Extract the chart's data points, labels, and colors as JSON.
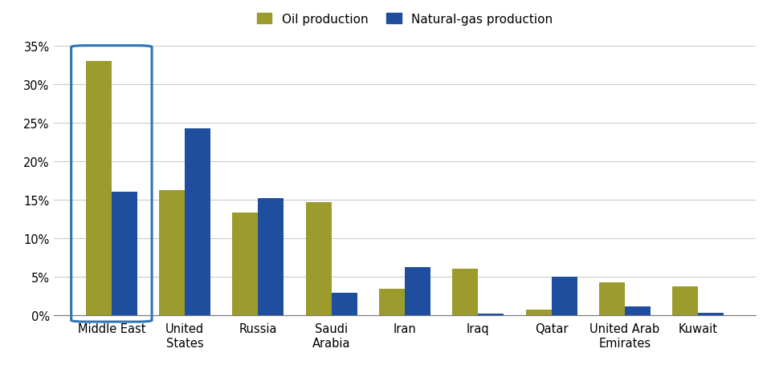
{
  "categories": [
    "Middle East",
    "United\nStates",
    "Russia",
    "Saudi\nArabia",
    "Iran",
    "Iraq",
    "Qatar",
    "United Arab\nEmirates",
    "Kuwait"
  ],
  "oil_production": [
    33.0,
    16.3,
    13.4,
    14.7,
    3.5,
    6.1,
    0.8,
    4.3,
    3.8
  ],
  "gas_production": [
    16.1,
    24.3,
    15.2,
    3.0,
    6.3,
    0.3,
    5.0,
    1.2,
    0.4
  ],
  "oil_color": "#9B9B2E",
  "gas_color": "#1F4E9E",
  "legend_oil_label": "Oil production",
  "legend_gas_label": "Natural-gas production",
  "ylim": [
    0,
    35
  ],
  "yticks": [
    0,
    5,
    10,
    15,
    20,
    25,
    30,
    35
  ],
  "ytick_labels": [
    "0%",
    "5%",
    "10%",
    "15%",
    "20%",
    "25%",
    "30%",
    "35%"
  ],
  "background_color": "#ffffff",
  "grid_color": "#cccccc",
  "highlight_index": 0,
  "highlight_box_color": "#2E75B6",
  "bar_width": 0.35
}
